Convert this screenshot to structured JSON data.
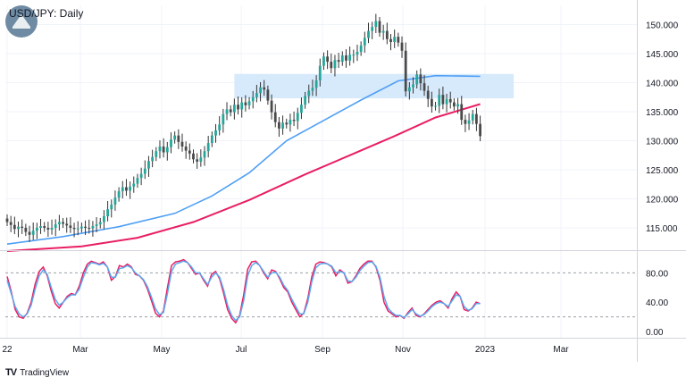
{
  "chart_data": {
    "type": "candlestick",
    "title": "USD/JPY: Daily",
    "x_ticks": [
      "22",
      "Mar",
      "May",
      "Jul",
      "Sep",
      "Nov",
      "2023",
      "Mar"
    ],
    "price_panel": {
      "y_ticks": [
        150,
        145,
        140,
        135,
        130,
        125,
        120,
        115
      ],
      "ylim": [
        111,
        152
      ],
      "candles_close": [
        116.0,
        115.5,
        114.8,
        115.2,
        115.0,
        114.3,
        113.8,
        114.5,
        115.0,
        115.3,
        115.0,
        114.7,
        115.0,
        115.6,
        116.0,
        115.7,
        115.4,
        115.0,
        114.8,
        114.9,
        115.2,
        115.0,
        114.9,
        115.3,
        115.6,
        116.0,
        117.0,
        118.2,
        119.0,
        120.2,
        121.3,
        122.0,
        121.4,
        122.1,
        122.6,
        123.6,
        124.3,
        125.2,
        126.5,
        127.2,
        128.2,
        129.0,
        128.0,
        128.9,
        130.2,
        130.9,
        129.8,
        129.0,
        128.3,
        127.8,
        126.8,
        126.4,
        127.1,
        128.2,
        129.6,
        130.9,
        131.8,
        132.8,
        134.6,
        135.4,
        134.9,
        136.2,
        135.4,
        136.6,
        136.1,
        136.8,
        137.5,
        138.2,
        139.2,
        138.8,
        136.9,
        134.9,
        133.2,
        132.1,
        133.1,
        132.8,
        133.6,
        133.4,
        134.8,
        136.2,
        137.7,
        138.6,
        139.1,
        140.4,
        142.9,
        144.5,
        143.6,
        142.5,
        143.9,
        143.6,
        144.7,
        143.8,
        144.8,
        144.8,
        145.3,
        146.4,
        147.7,
        148.9,
        149.6,
        150.6,
        148.6,
        148.9,
        147.5,
        147.0,
        147.9,
        146.9,
        145.5,
        138.5,
        139.2,
        139.7,
        141.4,
        139.9,
        138.6,
        137.2,
        135.9,
        136.0,
        137.9,
        136.3,
        137.2,
        136.6,
        135.9,
        136.3,
        133.6,
        132.9,
        133.5,
        134.6,
        132.9,
        130.8
      ],
      "candles_open": [
        116.6,
        116.0,
        115.5,
        114.8,
        115.2,
        115.0,
        114.3,
        113.8,
        114.5,
        115.0,
        115.3,
        115.0,
        114.7,
        115.0,
        115.6,
        116.0,
        115.7,
        115.4,
        115.0,
        114.8,
        114.9,
        115.2,
        115.0,
        114.9,
        115.3,
        115.6,
        116.0,
        117.0,
        118.2,
        119.0,
        120.2,
        121.3,
        122.0,
        121.4,
        122.1,
        122.6,
        123.6,
        124.3,
        125.2,
        126.5,
        127.2,
        128.2,
        129.0,
        128.0,
        128.9,
        130.2,
        130.9,
        129.8,
        129.0,
        128.3,
        127.8,
        126.8,
        126.4,
        127.1,
        128.2,
        129.6,
        130.9,
        131.8,
        132.8,
        134.6,
        135.4,
        134.9,
        136.2,
        135.4,
        136.6,
        136.1,
        136.8,
        137.5,
        138.2,
        139.2,
        138.8,
        136.9,
        134.9,
        133.2,
        132.1,
        133.1,
        132.8,
        133.6,
        133.4,
        134.8,
        136.2,
        137.7,
        138.6,
        139.1,
        140.4,
        142.9,
        144.5,
        143.6,
        142.5,
        143.9,
        143.6,
        144.7,
        143.8,
        144.8,
        144.8,
        145.3,
        146.4,
        147.7,
        148.9,
        149.6,
        150.6,
        148.6,
        148.9,
        147.5,
        147.0,
        147.9,
        146.9,
        145.5,
        138.5,
        139.2,
        139.7,
        141.4,
        139.9,
        138.6,
        137.2,
        135.9,
        136.0,
        137.9,
        136.3,
        137.2,
        136.6,
        135.9,
        136.3,
        133.6,
        132.9,
        133.5,
        134.6,
        132.9
      ],
      "ma_blue": [
        {
          "x": 0,
          "y": 112.2
        },
        {
          "x": 15,
          "y": 113.5
        },
        {
          "x": 30,
          "y": 115.2
        },
        {
          "x": 45,
          "y": 117.5
        },
        {
          "x": 55,
          "y": 120.5
        },
        {
          "x": 65,
          "y": 124.5
        },
        {
          "x": 75,
          "y": 130.0
        },
        {
          "x": 85,
          "y": 133.5
        },
        {
          "x": 95,
          "y": 137.0
        },
        {
          "x": 105,
          "y": 140.3
        },
        {
          "x": 115,
          "y": 141.2
        },
        {
          "x": 127,
          "y": 141.1
        }
      ],
      "ma_pink": [
        {
          "x": 0,
          "y": 111.0
        },
        {
          "x": 20,
          "y": 111.8
        },
        {
          "x": 35,
          "y": 113.3
        },
        {
          "x": 50,
          "y": 116.0
        },
        {
          "x": 65,
          "y": 119.8
        },
        {
          "x": 80,
          "y": 124.2
        },
        {
          "x": 92,
          "y": 127.5
        },
        {
          "x": 104,
          "y": 130.8
        },
        {
          "x": 115,
          "y": 134.0
        },
        {
          "x": 127,
          "y": 136.3
        }
      ],
      "zone": {
        "x0": 61,
        "x1": 136,
        "y_low": 137.3,
        "y_high": 141.5
      }
    },
    "oscillator_panel": {
      "y_ticks": [
        80,
        40,
        0
      ],
      "ylim": [
        0,
        100
      ],
      "ref_lines": [
        80,
        20
      ],
      "series": [
        {
          "color": "#e91e63",
          "values": [
            75,
            55,
            30,
            20,
            18,
            25,
            40,
            65,
            82,
            88,
            76,
            55,
            38,
            32,
            40,
            48,
            52,
            50,
            62,
            80,
            92,
            96,
            94,
            92,
            95,
            88,
            70,
            75,
            90,
            88,
            92,
            88,
            78,
            76,
            70,
            58,
            42,
            25,
            20,
            28,
            60,
            90,
            95,
            96,
            98,
            94,
            86,
            78,
            80,
            70,
            62,
            78,
            82,
            72,
            52,
            30,
            18,
            12,
            22,
            50,
            85,
            95,
            96,
            90,
            80,
            72,
            84,
            82,
            72,
            60,
            54,
            40,
            30,
            20,
            25,
            45,
            75,
            92,
            95,
            94,
            92,
            88,
            76,
            84,
            80,
            66,
            68,
            76,
            86,
            92,
            96,
            96,
            88,
            70,
            40,
            28,
            24,
            20,
            22,
            18,
            26,
            32,
            22,
            20,
            24,
            30,
            36,
            40,
            42,
            38,
            32,
            45,
            54,
            48,
            30,
            28,
            32,
            40,
            38
          ]
        },
        {
          "color": "#5aa9f0",
          "values": [
            70,
            52,
            34,
            24,
            20,
            24,
            36,
            58,
            76,
            84,
            78,
            60,
            44,
            36,
            40,
            46,
            50,
            50,
            58,
            74,
            88,
            94,
            93,
            91,
            93,
            88,
            74,
            74,
            86,
            87,
            90,
            87,
            80,
            76,
            71,
            61,
            47,
            31,
            23,
            26,
            52,
            82,
            92,
            94,
            96,
            94,
            88,
            80,
            80,
            72,
            64,
            74,
            80,
            74,
            57,
            36,
            22,
            15,
            20,
            42,
            76,
            90,
            94,
            90,
            82,
            74,
            80,
            81,
            74,
            63,
            56,
            44,
            34,
            24,
            24,
            40,
            68,
            87,
            92,
            93,
            92,
            89,
            80,
            82,
            80,
            69,
            68,
            74,
            83,
            89,
            94,
            95,
            89,
            74,
            48,
            32,
            26,
            22,
            22,
            19,
            24,
            30,
            24,
            21,
            23,
            28,
            34,
            38,
            40,
            38,
            34,
            42,
            50,
            48,
            34,
            29,
            31,
            38,
            38
          ]
        }
      ]
    }
  },
  "colors": {
    "up": "#26a69a",
    "down": "#4a4a4a",
    "candle": "#333333",
    "ma_blue": "#4f9ff5",
    "ma_pink": "#e91e63",
    "zone": "#cfe6fb",
    "grid": "#f0f3fa",
    "axis": "#d1d4dc"
  },
  "branding": {
    "tv_glyph": "TV",
    "name": "TradingView"
  }
}
